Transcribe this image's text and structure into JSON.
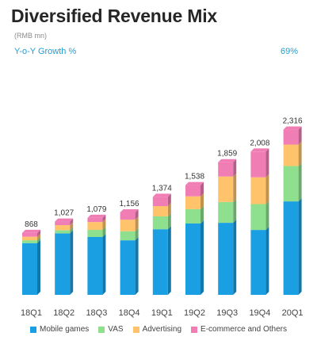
{
  "header": {
    "title": "Diversified Revenue Mix",
    "unit": "(RMB mn)",
    "growth_label": "Y-o-Y Growth %",
    "growth_value": "69%"
  },
  "colors": {
    "mobile_games": "#1a9fe3",
    "vas": "#8ee08e",
    "advertising": "#ffc36b",
    "ecommerce": "#f07eb5"
  },
  "chart_data": {
    "type": "bar",
    "stacked": true,
    "categories": [
      "18Q1",
      "18Q2",
      "18Q3",
      "18Q4",
      "19Q1",
      "19Q2",
      "19Q3",
      "19Q4",
      "20Q1"
    ],
    "totals": [
      "868",
      "1,027",
      "1,079",
      "1,156",
      "1,374",
      "1,538",
      "1,859",
      "2,008",
      "2,316"
    ],
    "series": [
      {
        "name": "Mobile games",
        "color": "#1a9fe3",
        "values": [
          725,
          862,
          811,
          765,
          920,
          1000,
          1010,
          910,
          1310
        ]
      },
      {
        "name": "VAS",
        "color": "#8ee08e",
        "values": [
          40,
          45,
          100,
          127,
          180,
          201,
          291,
          362,
          496
        ]
      },
      {
        "name": "Advertising",
        "color": "#ffc36b",
        "values": [
          50,
          70,
          110,
          162,
          144,
          180,
          358,
          376,
          300
        ]
      },
      {
        "name": "E-commerce and Others",
        "color": "#f07eb5",
        "values": [
          53,
          50,
          58,
          102,
          130,
          157,
          200,
          360,
          210
        ]
      }
    ],
    "ylim": [
      0,
      2500
    ]
  }
}
